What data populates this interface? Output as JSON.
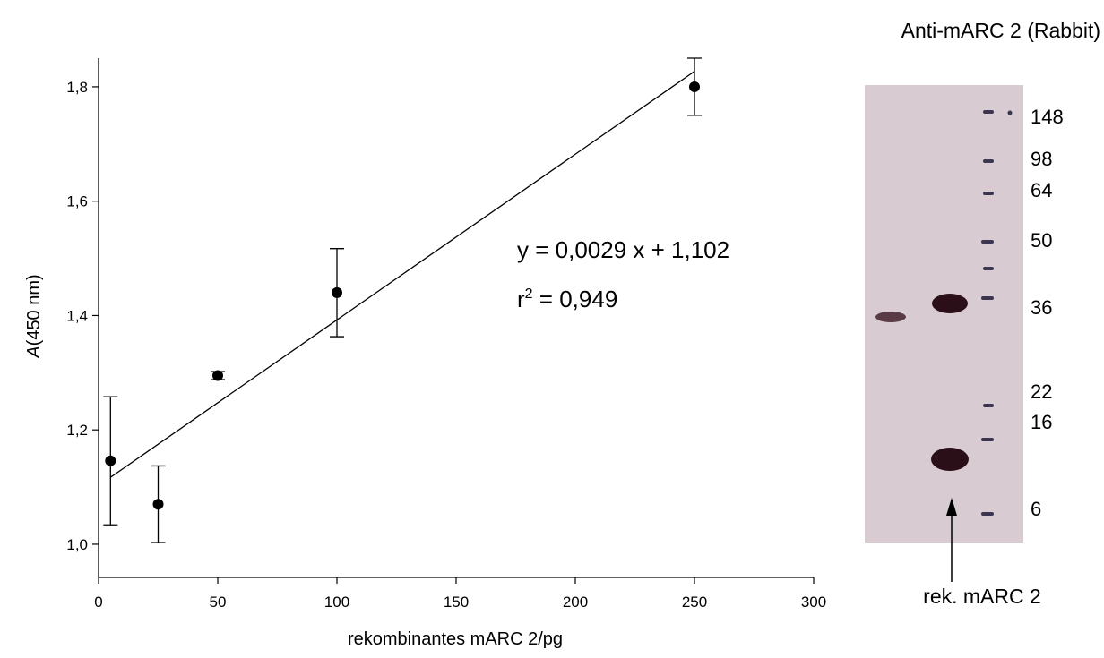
{
  "chart_data": {
    "type": "scatter",
    "x_label": "rekombinantes mARC 2/pg",
    "y_label": {
      "italic": "A",
      "rest": "(450 nm)"
    },
    "x": [
      5,
      25,
      50,
      100,
      250
    ],
    "values": [
      1.146,
      1.07,
      1.295,
      1.44,
      1.8
    ],
    "errors": [
      0.112,
      0.067,
      0.007,
      0.077,
      0.05
    ],
    "color": "#000000",
    "xlim": [
      0,
      300
    ],
    "xticks": [
      0,
      50,
      100,
      150,
      200,
      250,
      300
    ],
    "ylim": [
      0.942,
      1.85
    ],
    "yticks": [
      {
        "value": 1.0,
        "label": "1,0"
      },
      {
        "value": 1.2,
        "label": "1,2"
      },
      {
        "value": 1.4,
        "label": "1,4"
      },
      {
        "value": 1.6,
        "label": "1,6"
      },
      {
        "value": 1.8,
        "label": "1,8"
      }
    ],
    "trendline": {
      "x": [
        5,
        250
      ],
      "values": [
        1.117,
        1.827
      ]
    },
    "annotations": {
      "equation": "y = 0,0029 x + 1,102",
      "r2": {
        "base": "r",
        "sup": "2",
        "rest": " = 0,949"
      }
    }
  },
  "blot": {
    "title": "Anti-mARC 2 (Rabbit)",
    "marker_labels": [
      "148",
      "98",
      "64",
      "50",
      "36",
      "22",
      "16",
      "6"
    ],
    "arrow_label": "rek. mARC 2"
  }
}
